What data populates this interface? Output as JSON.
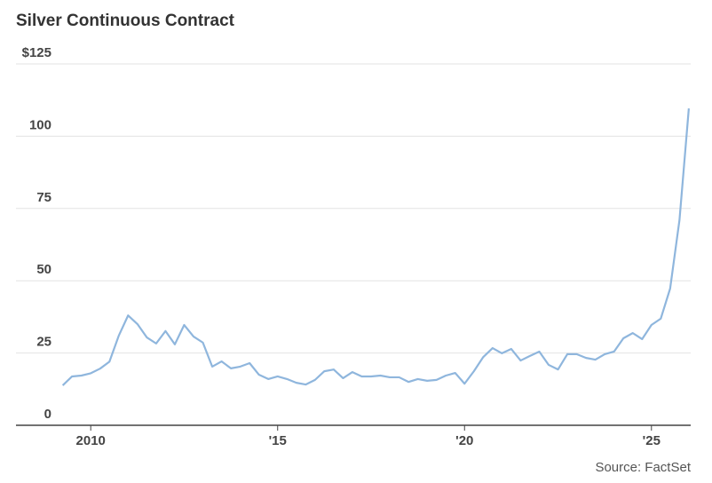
{
  "chart_data": {
    "type": "line",
    "title": "Silver Continuous Contract",
    "source": "Source: FactSet",
    "color": "#8fb6dd",
    "grid": true,
    "x": [
      2009.25,
      2009.5,
      2009.75,
      2010,
      2010.25,
      2010.5,
      2010.75,
      2011,
      2011.25,
      2011.5,
      2011.75,
      2012,
      2012.25,
      2012.5,
      2012.75,
      2013,
      2013.25,
      2013.5,
      2013.75,
      2014,
      2014.25,
      2014.5,
      2014.75,
      2015,
      2015.25,
      2015.5,
      2015.75,
      2016,
      2016.25,
      2016.5,
      2016.75,
      2017,
      2017.25,
      2017.5,
      2017.75,
      2018,
      2018.25,
      2018.5,
      2018.75,
      2019,
      2019.25,
      2019.5,
      2019.75,
      2020,
      2020.25,
      2020.5,
      2020.75,
      2021,
      2021.25,
      2021.5,
      2021.75,
      2022,
      2022.25,
      2022.5,
      2022.75,
      2023,
      2023.25,
      2023.5,
      2023.75,
      2024,
      2024.25,
      2024.5,
      2024.75,
      2025,
      2025.25,
      2025.5,
      2025.75,
      2026
    ],
    "values": [
      13.8,
      16.9,
      17.2,
      18,
      19.6,
      22,
      31,
      38,
      35,
      30.4,
      28.3,
      32.6,
      28,
      34.7,
      30.7,
      28.6,
      20.3,
      22.1,
      19.7,
      20.3,
      21.5,
      17.5,
      16,
      16.9,
      16,
      14.7,
      14.1,
      15.7,
      18.7,
      19.3,
      16.3,
      18.4,
      16.9,
      16.9,
      17.2,
      16.6,
      16.6,
      15,
      16,
      15.4,
      15.7,
      17.2,
      18.1,
      14.4,
      18.7,
      23.6,
      26.7,
      24.9,
      26.4,
      22.4,
      24,
      25.5,
      20.9,
      19.3,
      24.6,
      24.6,
      23.3,
      22.7,
      24.6,
      25.5,
      30.1,
      31.9,
      29.8,
      34.7,
      36.9,
      47.3,
      71,
      109.6
    ],
    "xlim": [
      2008,
      2026.05
    ],
    "xticks": [
      {
        "value": 2010,
        "label": "2010"
      },
      {
        "value": 2015,
        "label": "'15"
      },
      {
        "value": 2020,
        "label": "'20"
      },
      {
        "value": 2025,
        "label": "'25"
      }
    ],
    "ylim": [
      0,
      125
    ],
    "yticks": [
      0,
      25,
      50,
      75,
      100,
      {
        "value": 125,
        "label": "$125"
      }
    ]
  }
}
